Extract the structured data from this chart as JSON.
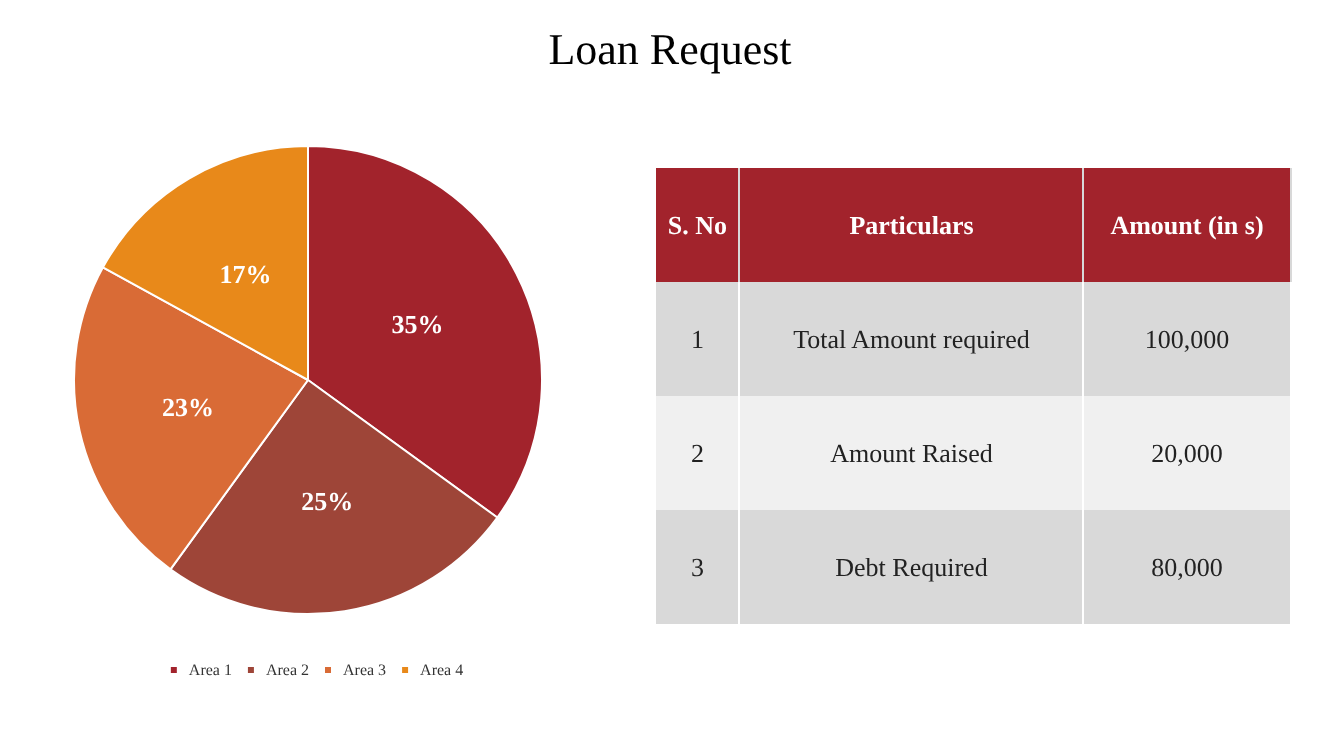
{
  "chart_data": [
    {
      "type": "pie",
      "categories": [
        "Area 1",
        "Area 2",
        "Area 3",
        "Area 4"
      ],
      "values": [
        35,
        25,
        23,
        17
      ],
      "value_labels": [
        "35%",
        "25%",
        "23%",
        "17%"
      ],
      "colors": [
        "#a2232c",
        "#9e4538",
        "#d96b36",
        "#e8891a"
      ],
      "legend": "bottom"
    },
    {
      "type": "other",
      "title": "Loan Request",
      "categories": [
        "S. No",
        "Particulars",
        "Amount (in s)"
      ],
      "cell_labels": [
        [
          "1",
          "Total Amount required",
          "100,000"
        ],
        [
          "2",
          "Amount Raised",
          "20,000"
        ],
        [
          "3",
          "Debt Required",
          "80,000"
        ]
      ]
    }
  ]
}
